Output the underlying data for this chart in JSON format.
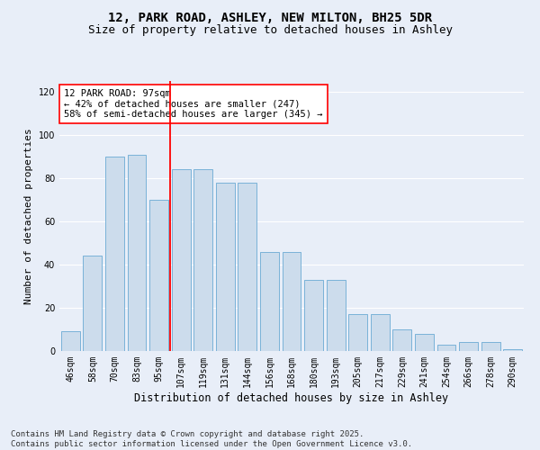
{
  "title_line1": "12, PARK ROAD, ASHLEY, NEW MILTON, BH25 5DR",
  "title_line2": "Size of property relative to detached houses in Ashley",
  "xlabel": "Distribution of detached houses by size in Ashley",
  "ylabel": "Number of detached properties",
  "categories": [
    "46sqm",
    "58sqm",
    "70sqm",
    "83sqm",
    "95sqm",
    "107sqm",
    "119sqm",
    "131sqm",
    "144sqm",
    "156sqm",
    "168sqm",
    "180sqm",
    "193sqm",
    "205sqm",
    "217sqm",
    "229sqm",
    "241sqm",
    "254sqm",
    "266sqm",
    "278sqm",
    "290sqm"
  ],
  "values": [
    9,
    44,
    90,
    91,
    70,
    84,
    84,
    78,
    78,
    46,
    46,
    33,
    33,
    17,
    17,
    10,
    8,
    3,
    4,
    4,
    1
  ],
  "bar_color": "#ccdcec",
  "bar_edge_color": "#6aaad4",
  "vline_color": "red",
  "annotation_text": "12 PARK ROAD: 97sqm\n← 42% of detached houses are smaller (247)\n58% of semi-detached houses are larger (345) →",
  "annotation_box_color": "white",
  "annotation_box_edge": "red",
  "ylim": [
    0,
    125
  ],
  "yticks": [
    0,
    20,
    40,
    60,
    80,
    100,
    120
  ],
  "background_color": "#e8eef8",
  "footer_text": "Contains HM Land Registry data © Crown copyright and database right 2025.\nContains public sector information licensed under the Open Government Licence v3.0.",
  "grid_color": "#ffffff",
  "title_fontsize": 10,
  "subtitle_fontsize": 9,
  "tick_fontsize": 7,
  "xlabel_fontsize": 8.5,
  "ylabel_fontsize": 8,
  "annotation_fontsize": 7.5,
  "footer_fontsize": 6.5
}
